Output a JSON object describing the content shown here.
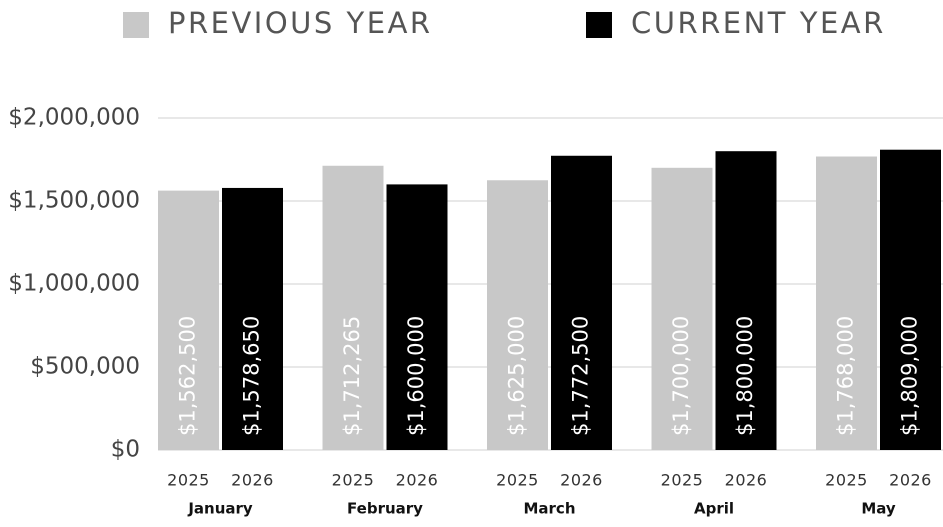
{
  "chart_data": {
    "type": "bar",
    "categories": [
      "January",
      "February",
      "March",
      "April",
      "May"
    ],
    "series": [
      {
        "name": "PREVIOUS YEAR",
        "sublabel": "2025",
        "color": "#c8c8c8",
        "values": [
          1562500,
          1712265,
          1625000,
          1700000,
          1768000
        ],
        "value_labels": [
          "$1,562,500",
          "$1,712,265",
          "$1,625,000",
          "$1,700,000",
          "$1,768,000"
        ]
      },
      {
        "name": "CURRENT YEAR",
        "sublabel": "2026",
        "color": "#000000",
        "values": [
          1578650,
          1600000,
          1772500,
          1800000,
          1809000
        ],
        "value_labels": [
          "$1,578,650",
          "$1,600,000",
          "$1,772,500",
          "$1,800,000",
          "$1,809,000"
        ]
      }
    ],
    "ylim": [
      0,
      2000000
    ],
    "yticks": [
      {
        "value": 0,
        "label": "$0"
      },
      {
        "value": 500000,
        "label": "$500,000"
      },
      {
        "value": 1000000,
        "label": "$1,000,000"
      },
      {
        "value": 1500000,
        "label": "$1,500,000"
      },
      {
        "value": 2000000,
        "label": "$2,000,000"
      }
    ],
    "grid": true,
    "legend": "top"
  }
}
